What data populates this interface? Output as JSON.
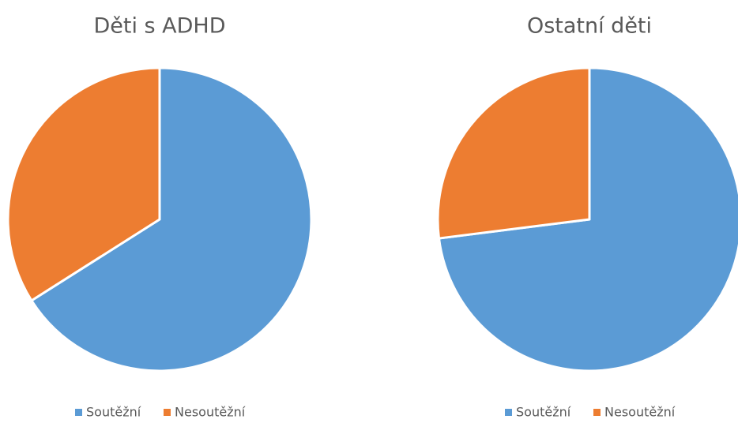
{
  "chart_data": [
    {
      "type": "pie",
      "title": "Děti s ADHD",
      "categories": [
        "Soutěžní",
        "Nesoutěžní"
      ],
      "values": [
        66,
        34
      ],
      "colors": [
        "#5b9bd5",
        "#ed7d31"
      ]
    },
    {
      "type": "pie",
      "title": "Ostatní děti",
      "categories": [
        "Soutěžní",
        "Nesoutěžní"
      ],
      "values": [
        73,
        27
      ],
      "colors": [
        "#5b9bd5",
        "#ed7d31"
      ]
    }
  ]
}
